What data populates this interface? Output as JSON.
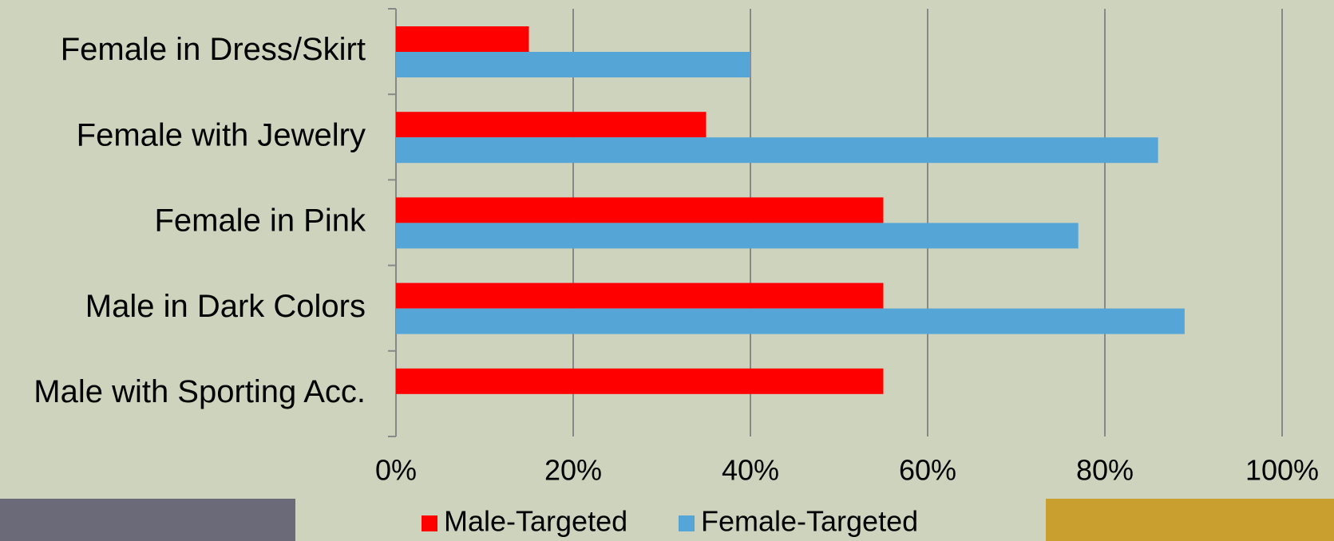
{
  "chart_data": {
    "type": "hbar",
    "categories": [
      "Female in Dress/Skirt",
      "Female with Jewelry",
      "Female in Pink",
      "Male in Dark Colors",
      "Male with Sporting Acc."
    ],
    "series": [
      {
        "name": "Male-Targeted",
        "color": "#ff0000",
        "values": [
          15,
          35,
          55,
          55,
          55
        ]
      },
      {
        "name": "Female-Targeted",
        "color": "#55a6d6",
        "values": [
          40,
          86,
          77,
          89,
          0
        ]
      }
    ],
    "xlim": [
      0,
      100
    ],
    "xticks": [
      {
        "value": 0,
        "label": "0%"
      },
      {
        "value": 20,
        "label": "20%"
      },
      {
        "value": 40,
        "label": "40%"
      },
      {
        "value": 60,
        "label": "60%"
      },
      {
        "value": 80,
        "label": "80%"
      },
      {
        "value": 100,
        "label": "100%"
      }
    ],
    "grid": true,
    "legend": "bottom"
  }
}
